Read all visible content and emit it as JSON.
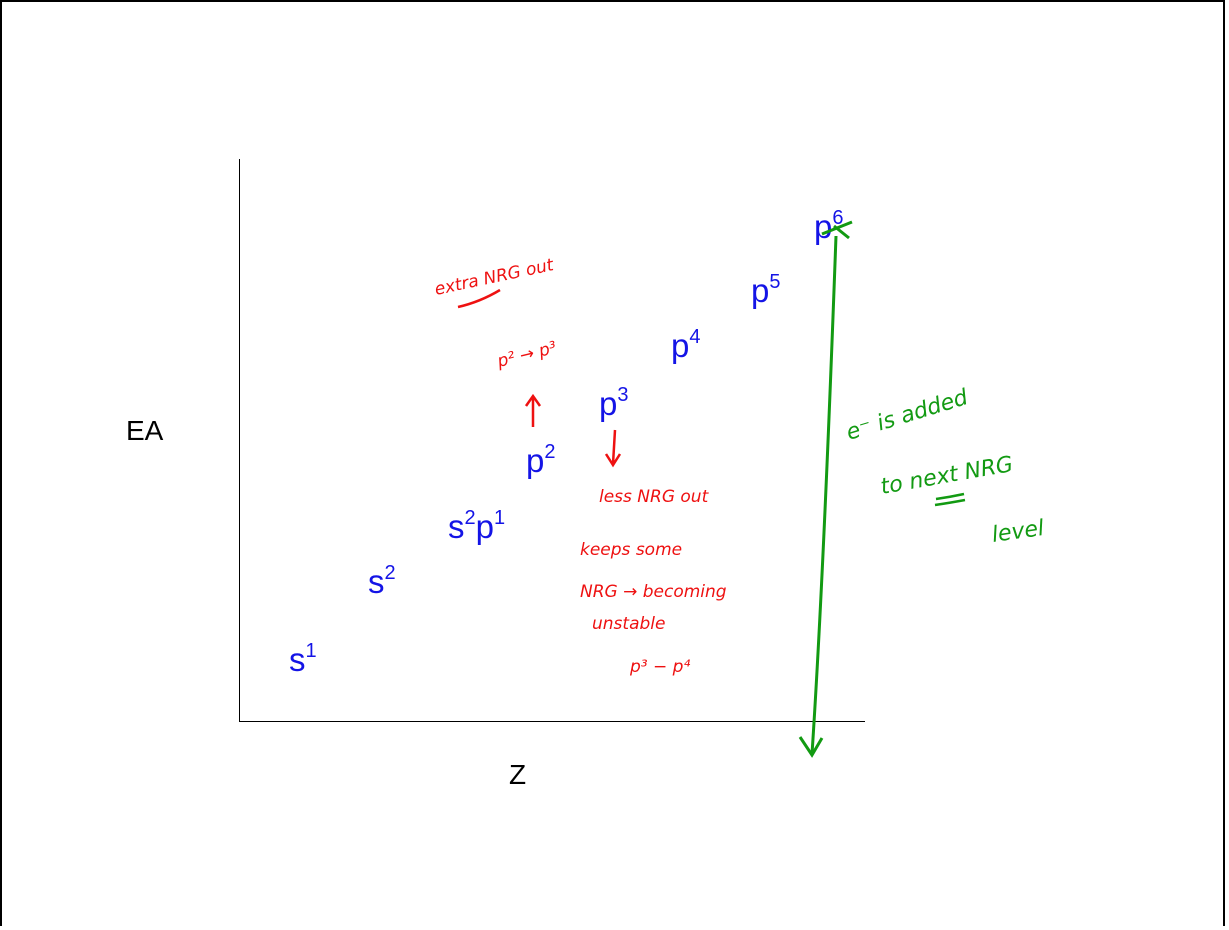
{
  "axes": {
    "y_label": "EA",
    "x_label": "Z"
  },
  "points": [
    {
      "base": "s",
      "sup": "1"
    },
    {
      "base": "s",
      "sup": "2"
    },
    {
      "base": "s",
      "sup": "2",
      "base2": "p",
      "sup2": "1"
    },
    {
      "base": "p",
      "sup": "2"
    },
    {
      "base": "p",
      "sup": "3"
    },
    {
      "base": "p",
      "sup": "4"
    },
    {
      "base": "p",
      "sup": "5"
    },
    {
      "base": "p",
      "sup": "6"
    }
  ],
  "annotations_red": {
    "top_note": "extra NRG out",
    "transition_top": "p² → p³",
    "less_note": "less NRG out",
    "keeps_1": "keeps some",
    "keeps_2": "NRG → becoming",
    "keeps_3": "unstable",
    "transition_bottom": "p³ − p⁴"
  },
  "annotations_green": {
    "line_1": "e⁻ is added",
    "line_2": "to next NRG",
    "line_3": "level"
  },
  "colors": {
    "config_text": "#1414e6",
    "red_ink": "#ee1111",
    "green_ink": "#129a12"
  }
}
